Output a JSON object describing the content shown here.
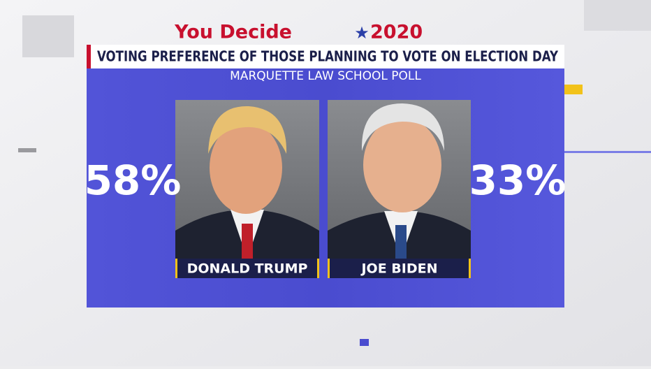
{
  "header": {
    "logo_left": "You Decide",
    "logo_right": "2020",
    "title": "VOTING PREFERENCE OF THOSE PLANNING TO VOTE ON ELECTION DAY",
    "subtitle": "MARQUETTE LAW SCHOOL POLL"
  },
  "candidates": [
    {
      "name": "DONALD TRUMP",
      "percent": "58%"
    },
    {
      "name": "JOE BIDEN",
      "percent": "33%"
    }
  ]
}
